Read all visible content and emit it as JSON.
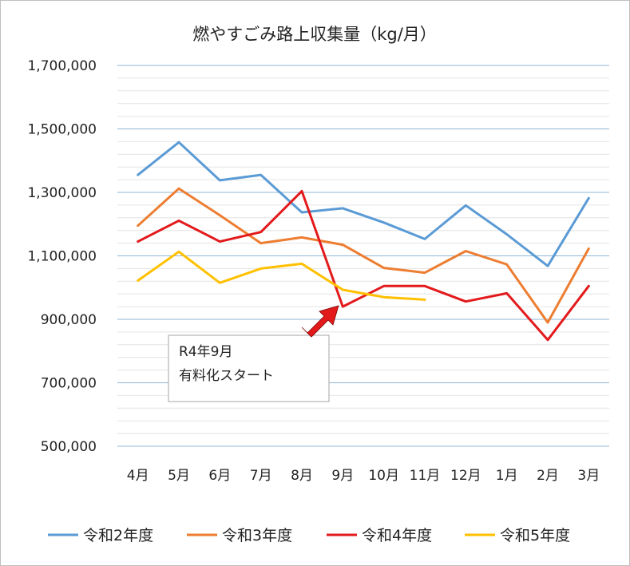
{
  "chart_data": {
    "type": "line",
    "title": "燃やすごみ路上収集量（kg/月）",
    "categories": [
      "4月",
      "5月",
      "6月",
      "7月",
      "8月",
      "9月",
      "10月",
      "11月",
      "12月",
      "1月",
      "2月",
      "3月"
    ],
    "ylim": [
      500000,
      1700000
    ],
    "yticks": [
      500000,
      700000,
      900000,
      1100000,
      1300000,
      1500000,
      1700000
    ],
    "ytick_labels": [
      "500,000",
      "700,000",
      "900,000",
      "1,100,000",
      "1,300,000",
      "1,500,000",
      "1,700,000"
    ],
    "grid": true,
    "legend_position": "bottom",
    "series": [
      {
        "name": "令和2年度",
        "color": "#5b9bd5",
        "values": [
          1355000,
          1458000,
          1338000,
          1355000,
          1237000,
          1250000,
          1205000,
          1153000,
          1259000,
          1168000,
          1068000,
          1282000
        ]
      },
      {
        "name": "令和3年度",
        "color": "#ed7d31",
        "values": [
          1195000,
          1312000,
          1228000,
          1140000,
          1158000,
          1135000,
          1062000,
          1047000,
          1115000,
          1073000,
          890000,
          1123000
        ]
      },
      {
        "name": "令和4年度",
        "color": "#e31a1c",
        "values": [
          1145000,
          1211000,
          1145000,
          1175000,
          1304000,
          940000,
          1005000,
          1005000,
          956000,
          982000,
          835000,
          1005000
        ]
      },
      {
        "name": "令和5年度",
        "color": "#ffc000",
        "values": [
          1022000,
          1113000,
          1015000,
          1060000,
          1075000,
          993000,
          970000,
          962000,
          null,
          null,
          null,
          null
        ]
      }
    ],
    "annotation": {
      "lines": [
        "R4年9月",
        "有料化スタート"
      ],
      "arrow_color": "#e31a1c"
    }
  }
}
